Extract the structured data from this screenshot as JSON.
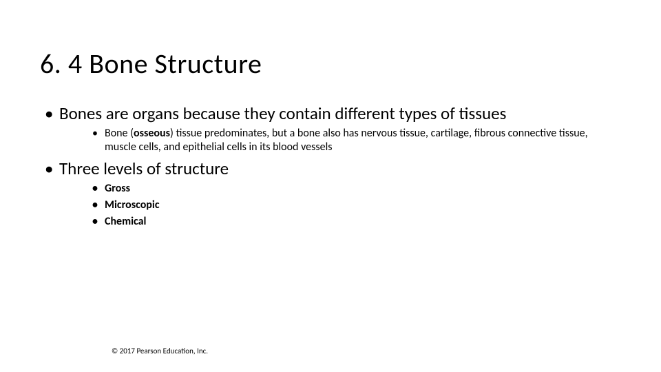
{
  "title": "6. 4  Bone Structure",
  "bullets": {
    "b1": {
      "text": "Bones are organs because they contain different types of tissues",
      "sub": {
        "s1_pre": "Bone (",
        "s1_bold": "osseous",
        "s1_post": ") tissue predominates, but a bone also has nervous tissue, cartilage, fibrous connective tissue, muscle cells, and epithelial cells in its blood vessels"
      }
    },
    "b2": {
      "text": "Three levels of structure",
      "sub": {
        "s1": "Gross",
        "s2": "Microscopic",
        "s3": "Chemical"
      }
    }
  },
  "footer": "© 2017 Pearson Education, Inc.",
  "colors": {
    "background": "#ffffff",
    "text": "#000000"
  },
  "typography": {
    "title_fontsize": 40,
    "lvl1_fontsize": 25,
    "lvl2_fontsize": 16,
    "footer_fontsize": 11,
    "font_family": "Calibri"
  }
}
